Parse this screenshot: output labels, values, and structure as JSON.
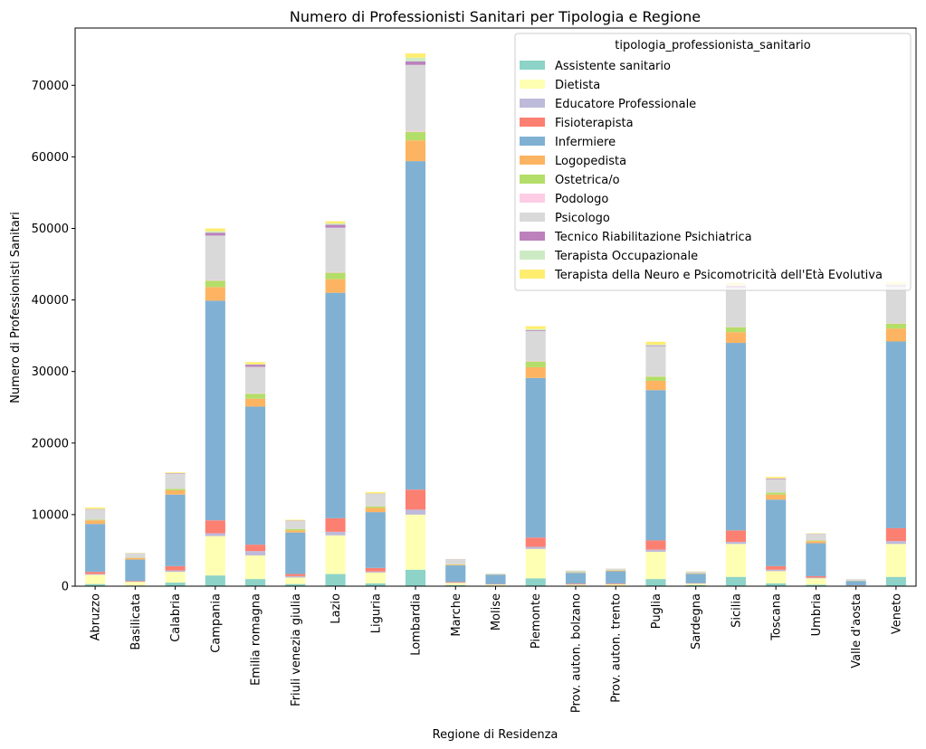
{
  "chart_data": {
    "type": "bar",
    "stacked": true,
    "title": "Numero di Professionisti Sanitari per Tipologia e Regione",
    "xlabel": "Regione di Residenza",
    "ylabel": "Numero di Professionisti Sanitari",
    "ylim": [
      0,
      78000
    ],
    "yticks": [
      0,
      10000,
      20000,
      30000,
      40000,
      50000,
      60000,
      70000
    ],
    "grid": false,
    "legend_title": "tipologia_professionista_sanitario",
    "legend_position": "top-right",
    "categories": [
      "Abruzzo",
      "Basilicata",
      "Calabria",
      "Campania",
      "Emilia romagna",
      "Friuli venezia giulia",
      "Lazio",
      "Liguria",
      "Lombardia",
      "Marche",
      "Molise",
      "Piemonte",
      "Prov. auton. bolzano",
      "Prov. auton. trento",
      "Puglia",
      "Sardegna",
      "Sicilia",
      "Toscana",
      "Umbria",
      "Valle d'aosta",
      "Veneto"
    ],
    "series": [
      {
        "name": "Assistente sanitario",
        "color": "#8dd3c7",
        "values": [
          300,
          100,
          500,
          1500,
          1000,
          300,
          1700,
          400,
          2300,
          150,
          80,
          1100,
          60,
          60,
          1000,
          150,
          1300,
          400,
          200,
          30,
          1300
        ]
      },
      {
        "name": "Dietista",
        "color": "#ffffb3",
        "values": [
          1300,
          500,
          1500,
          5500,
          3300,
          900,
          5400,
          1500,
          7700,
          300,
          150,
          4100,
          150,
          200,
          3800,
          200,
          4600,
          1700,
          900,
          60,
          4600
        ]
      },
      {
        "name": "Educatore Professionale",
        "color": "#bebada",
        "values": [
          100,
          20,
          200,
          400,
          600,
          200,
          500,
          150,
          700,
          50,
          20,
          300,
          50,
          30,
          300,
          20,
          300,
          200,
          100,
          10,
          400
        ]
      },
      {
        "name": "Fisioterapista",
        "color": "#fb8072",
        "values": [
          300,
          100,
          600,
          1800,
          900,
          300,
          1900,
          500,
          2800,
          100,
          50,
          1300,
          100,
          100,
          1300,
          50,
          1600,
          500,
          200,
          20,
          1800
        ]
      },
      {
        "name": "Infermiere",
        "color": "#80b1d3",
        "values": [
          6700,
          3000,
          10000,
          30700,
          19300,
          5800,
          31500,
          7800,
          45900,
          2300,
          1300,
          22300,
          1500,
          1700,
          21000,
          1300,
          26200,
          9300,
          4600,
          600,
          26100
        ]
      },
      {
        "name": "Logopedista",
        "color": "#fdb462",
        "values": [
          500,
          200,
          600,
          1900,
          1100,
          300,
          1900,
          600,
          2900,
          100,
          30,
          1500,
          50,
          100,
          1300,
          50,
          1500,
          700,
          300,
          30,
          1800
        ]
      },
      {
        "name": "Ostetrica/o",
        "color": "#b3de69",
        "values": [
          100,
          50,
          200,
          900,
          700,
          200,
          900,
          200,
          1200,
          50,
          20,
          800,
          50,
          50,
          600,
          50,
          700,
          300,
          100,
          20,
          700
        ]
      },
      {
        "name": "Podologo",
        "color": "#fccde5",
        "values": [
          20,
          10,
          30,
          100,
          60,
          20,
          100,
          30,
          150,
          10,
          5,
          80,
          5,
          5,
          60,
          5,
          80,
          30,
          10,
          5,
          80
        ]
      },
      {
        "name": "Psicologo",
        "color": "#d9d9d9",
        "values": [
          1400,
          600,
          2100,
          6200,
          3700,
          1100,
          6200,
          1700,
          9200,
          700,
          100,
          4200,
          200,
          200,
          4200,
          200,
          5400,
          1800,
          900,
          200,
          5100
        ]
      },
      {
        "name": "Tecnico Riabilitazione Psichiatrica",
        "color": "#bc80bd",
        "values": [
          50,
          20,
          60,
          400,
          300,
          40,
          400,
          50,
          500,
          20,
          5,
          100,
          5,
          5,
          100,
          10,
          300,
          100,
          20,
          5,
          200
        ]
      },
      {
        "name": "Terapista Occupazionale",
        "color": "#ccebc5",
        "values": [
          30,
          10,
          20,
          200,
          60,
          20,
          200,
          30,
          500,
          10,
          5,
          150,
          20,
          10,
          100,
          10,
          100,
          50,
          10,
          5,
          100
        ]
      },
      {
        "name": "Terapista della Neuro e Psicomotricità dell'Età Evolutiva",
        "color": "#ffed6f",
        "values": [
          200,
          40,
          100,
          400,
          300,
          100,
          300,
          200,
          600,
          10,
          10,
          400,
          10,
          10,
          400,
          30,
          300,
          200,
          60,
          10,
          300
        ]
      }
    ]
  }
}
